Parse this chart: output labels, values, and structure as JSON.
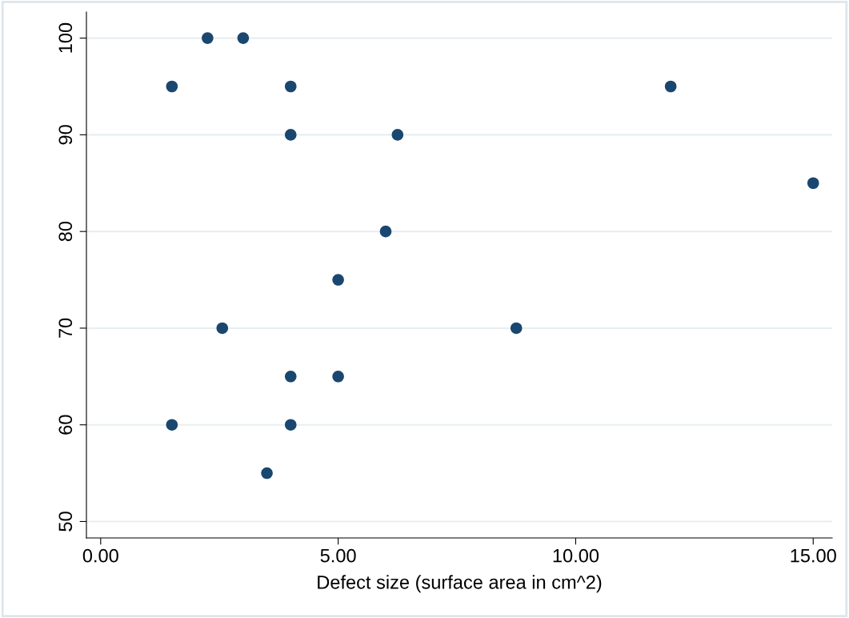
{
  "chart_data": {
    "type": "scatter",
    "xlabel": "Defect size (surface area in cm^2)",
    "x": [
      2.25,
      3,
      1.5,
      4,
      12,
      4,
      6.25,
      15,
      6,
      5,
      2.56,
      8.75,
      4,
      5,
      1.5,
      4,
      3.5
    ],
    "series": [
      {
        "color": "#1a476f",
        "values": [
          100,
          100,
          95,
          95,
          95,
          90,
          90,
          85,
          80,
          75,
          70,
          70,
          65,
          65,
          60,
          60,
          55
        ]
      }
    ],
    "xlim": [
      -0.3,
      15.4
    ],
    "ylim": [
      48.3,
      102.7
    ],
    "xticks": [
      {
        "value": 0,
        "label": "0.00"
      },
      {
        "value": 5,
        "label": "5.00"
      },
      {
        "value": 10,
        "label": "10.00"
      },
      {
        "value": 15,
        "label": "15.00"
      }
    ],
    "yticks": [
      50,
      60,
      70,
      80,
      90,
      100
    ],
    "grid": "y",
    "marker": "circle"
  }
}
